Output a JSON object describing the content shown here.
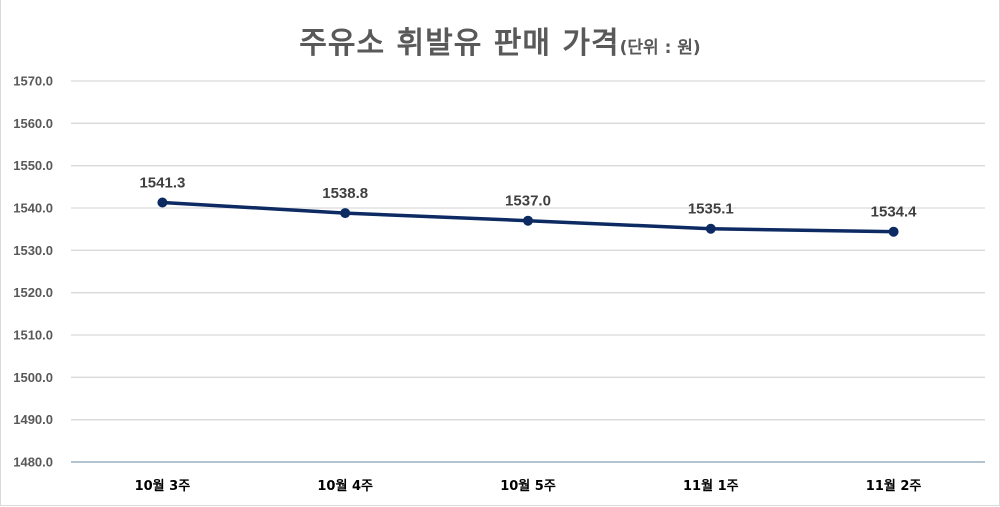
{
  "title": {
    "main": "주유소 휘발유 판매 가격",
    "unit": "(단위 : 원)"
  },
  "colors": {
    "line": "#0d2a63",
    "marker": "#0d2a63",
    "gridline": "#d9d9d9",
    "axis": "#b4c3d1",
    "title": "#595959"
  },
  "chart_data": {
    "type": "line",
    "title": "주유소 휘발유 판매 가격(단위 : 원)",
    "xlabel": "",
    "ylabel": "",
    "categories": [
      "10월 3주",
      "10월 4주",
      "10월 5주",
      "11월 1주",
      "11월 2주"
    ],
    "series": [
      {
        "name": "휘발유 판매 가격",
        "values": [
          1541.3,
          1538.8,
          1537.0,
          1535.1,
          1534.4
        ]
      }
    ],
    "data_labels": [
      "1541.3",
      "1538.8",
      "1537.0",
      "1535.1",
      "1534.4"
    ],
    "ylim": [
      1480,
      1570
    ],
    "y_ticks": [
      "1570.0",
      "1560.0",
      "1550.0",
      "1540.0",
      "1530.0",
      "1520.0",
      "1510.0",
      "1500.0",
      "1490.0",
      "1480.0"
    ],
    "grid": true,
    "legend": "none"
  }
}
